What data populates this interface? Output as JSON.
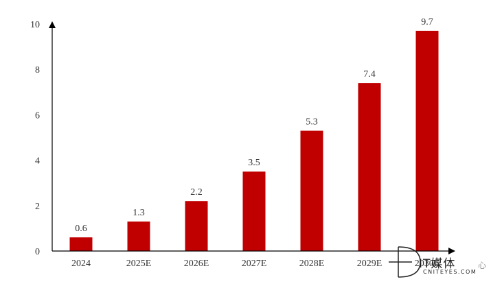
{
  "chart_data": {
    "type": "bar",
    "categories": [
      "2024",
      "2025E",
      "2026E",
      "2027E",
      "2028E",
      "2029E",
      "2030E"
    ],
    "values": [
      0.6,
      1.3,
      2.2,
      3.5,
      5.3,
      7.4,
      9.7
    ],
    "data_labels": [
      "0.6",
      "1.3",
      "2.2",
      "3.5",
      "5.3",
      "7.4",
      "9.7"
    ],
    "y_ticks": [
      "0",
      "2",
      "4",
      "6",
      "8",
      "10"
    ],
    "ylim": [
      0,
      10
    ],
    "title": "",
    "xlabel": "",
    "ylabel": "",
    "bar_color": "#C00000",
    "grid": false,
    "legend": "none"
  },
  "watermark": {
    "cn": "IT媒体",
    "en": "CNITEYES.COM",
    "tail": "心"
  }
}
